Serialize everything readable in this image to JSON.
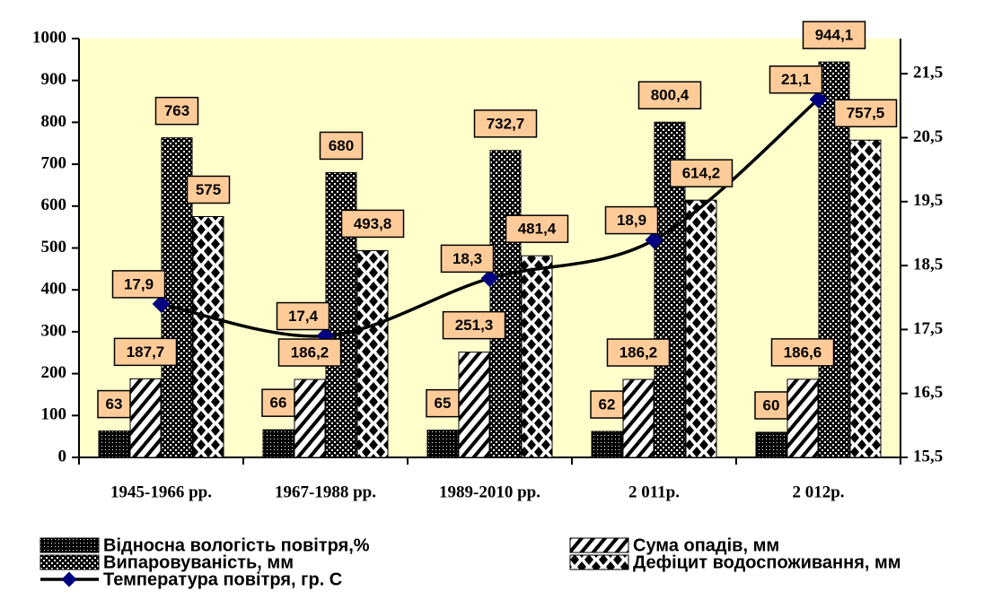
{
  "chart_data": {
    "type": "bar",
    "categories": [
      "1945-1966 рр.",
      "1967-1988 рр.",
      "1989-2010 рр.",
      "2 011р.",
      "2 012р."
    ],
    "series": [
      {
        "name": "Відносна  вологість  повітря,%",
        "color": "#000000",
        "pattern": "dots",
        "values": [
          63,
          66,
          65,
          62,
          60
        ]
      },
      {
        "name": "Сума опадів, мм",
        "color": "#000000",
        "pattern": "hatch",
        "values": [
          187.7,
          186.2,
          251.3,
          186.2,
          186.6
        ],
        "value_labels": [
          "187,7",
          "186,2",
          "251,3",
          "186,2",
          "186,6"
        ]
      },
      {
        "name": "Випаровуваність, мм",
        "color": "#000000",
        "pattern": "check",
        "values": [
          763,
          680,
          732.7,
          800.4,
          944.1
        ],
        "value_labels": [
          "763",
          "680",
          "732,7",
          "800,4",
          "944,1"
        ]
      },
      {
        "name": "Дефіцит водоспоживання, мм",
        "color": "#000000",
        "pattern": "diamonds",
        "values": [
          575,
          493.8,
          481.4,
          614.2,
          757.5
        ],
        "value_labels": [
          "575",
          "493,8",
          "481,4",
          "614,2",
          "757,5"
        ]
      },
      {
        "name": "Температура повітря, гр. С",
        "type": "line",
        "axis": "y2",
        "color": "#000080",
        "values": [
          17.9,
          17.4,
          18.3,
          18.9,
          21.1
        ],
        "value_labels": [
          "17,9",
          "17,4",
          "18,3",
          "18,9",
          "21,1"
        ]
      }
    ],
    "ylim": [
      0,
      1000
    ],
    "yticks": [
      0,
      100,
      200,
      300,
      400,
      500,
      600,
      700,
      800,
      900,
      1000
    ],
    "y2lim": [
      15.5,
      22.05
    ],
    "y2ticks": [
      {
        "value": 15.5,
        "label": "15,5"
      },
      {
        "value": 16.5,
        "label": "16,5"
      },
      {
        "value": 17.5,
        "label": "17,5"
      },
      {
        "value": 18.5,
        "label": "18,5"
      },
      {
        "value": 19.5,
        "label": "19,5"
      },
      {
        "value": 20.5,
        "label": "20,5"
      },
      {
        "value": 21.5,
        "label": "21,5"
      }
    ],
    "legend": "bottom"
  }
}
